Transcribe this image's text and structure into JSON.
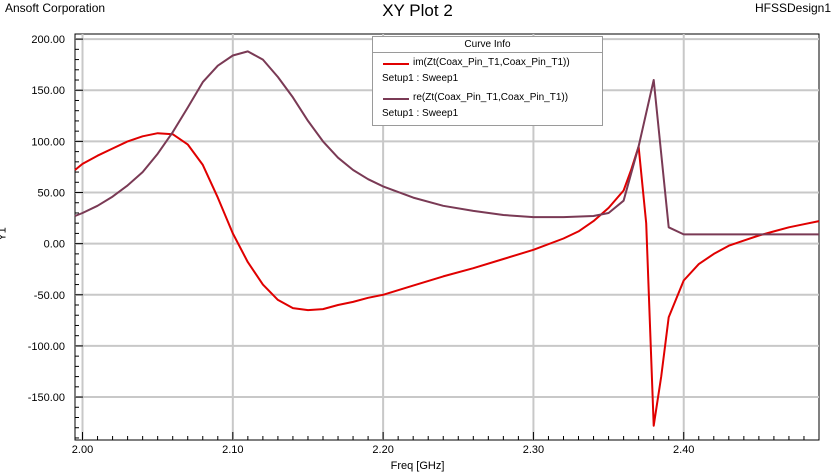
{
  "header": {
    "company": "Ansoft Corporation",
    "title": "XY Plot 2",
    "design": "HFSSDesign1"
  },
  "legend": {
    "heading": "Curve Info",
    "entries": [
      {
        "name": "im(Zt(Coax_Pin_T1,Coax_Pin_T1))",
        "subtitle": "Setup1 : Sweep1",
        "color": "#e00000"
      },
      {
        "name": "re(Zt(Coax_Pin_T1,Coax_Pin_T1))",
        "subtitle": "Setup1 : Sweep1",
        "color": "#7a3a55"
      }
    ]
  },
  "chart_data": {
    "type": "line",
    "title": "XY Plot 2",
    "xlabel": "Freq [GHz]",
    "ylabel": "Y1",
    "xlim": [
      1.995,
      2.49
    ],
    "ylim": [
      -192,
      205
    ],
    "x_ticks": [
      "2.00",
      "2.10",
      "2.20",
      "2.30",
      "2.40"
    ],
    "x_tick_values": [
      2.0,
      2.1,
      2.2,
      2.3,
      2.4
    ],
    "y_ticks": [
      "200.00",
      "150.00",
      "100.00",
      "50.00",
      "0.00",
      "-50.00",
      "-100.00",
      "-150.00"
    ],
    "y_tick_values": [
      200,
      150,
      100,
      50,
      0,
      -50,
      -100,
      -150
    ],
    "grid": true,
    "legend_position": "top-right",
    "series": [
      {
        "name": "im(Zt(Coax_Pin_T1,Coax_Pin_T1))",
        "color": "#e00000",
        "x": [
          1.995,
          2.0,
          2.01,
          2.02,
          2.03,
          2.04,
          2.05,
          2.06,
          2.07,
          2.08,
          2.09,
          2.1,
          2.11,
          2.12,
          2.13,
          2.14,
          2.15,
          2.16,
          2.17,
          2.18,
          2.19,
          2.2,
          2.22,
          2.24,
          2.26,
          2.28,
          2.3,
          2.32,
          2.33,
          2.34,
          2.35,
          2.36,
          2.365,
          2.37,
          2.375,
          2.38,
          2.385,
          2.39,
          2.4,
          2.41,
          2.42,
          2.43,
          2.44,
          2.45,
          2.46,
          2.47,
          2.48,
          2.49
        ],
        "y": [
          72,
          78,
          86,
          93,
          100,
          105,
          108,
          107,
          97,
          77,
          45,
          10,
          -18,
          -40,
          -55,
          -63,
          -65,
          -64,
          -60,
          -57,
          -53,
          -50,
          -41,
          -32,
          -24,
          -15,
          -6,
          5,
          12,
          22,
          35,
          52,
          72,
          95,
          20,
          -178,
          -130,
          -72,
          -36,
          -20,
          -10,
          -2,
          3,
          8,
          12,
          16,
          19,
          22
        ]
      },
      {
        "name": "re(Zt(Coax_Pin_T1,Coax_Pin_T1))",
        "color": "#7a3a55",
        "x": [
          1.995,
          2.0,
          2.01,
          2.02,
          2.03,
          2.04,
          2.05,
          2.06,
          2.07,
          2.08,
          2.09,
          2.1,
          2.11,
          2.12,
          2.13,
          2.14,
          2.15,
          2.16,
          2.17,
          2.18,
          2.19,
          2.2,
          2.22,
          2.24,
          2.26,
          2.28,
          2.3,
          2.32,
          2.34,
          2.35,
          2.36,
          2.37,
          2.38,
          2.39,
          2.4,
          2.42,
          2.44,
          2.46,
          2.48,
          2.49
        ],
        "y": [
          27,
          30,
          37,
          46,
          57,
          70,
          88,
          109,
          133,
          158,
          174,
          184,
          188,
          180,
          163,
          143,
          120,
          100,
          84,
          72,
          63,
          56,
          45,
          37,
          32,
          28,
          26,
          26,
          27,
          30,
          42,
          95,
          160,
          16,
          9,
          9,
          9,
          9,
          9,
          9
        ]
      }
    ]
  }
}
